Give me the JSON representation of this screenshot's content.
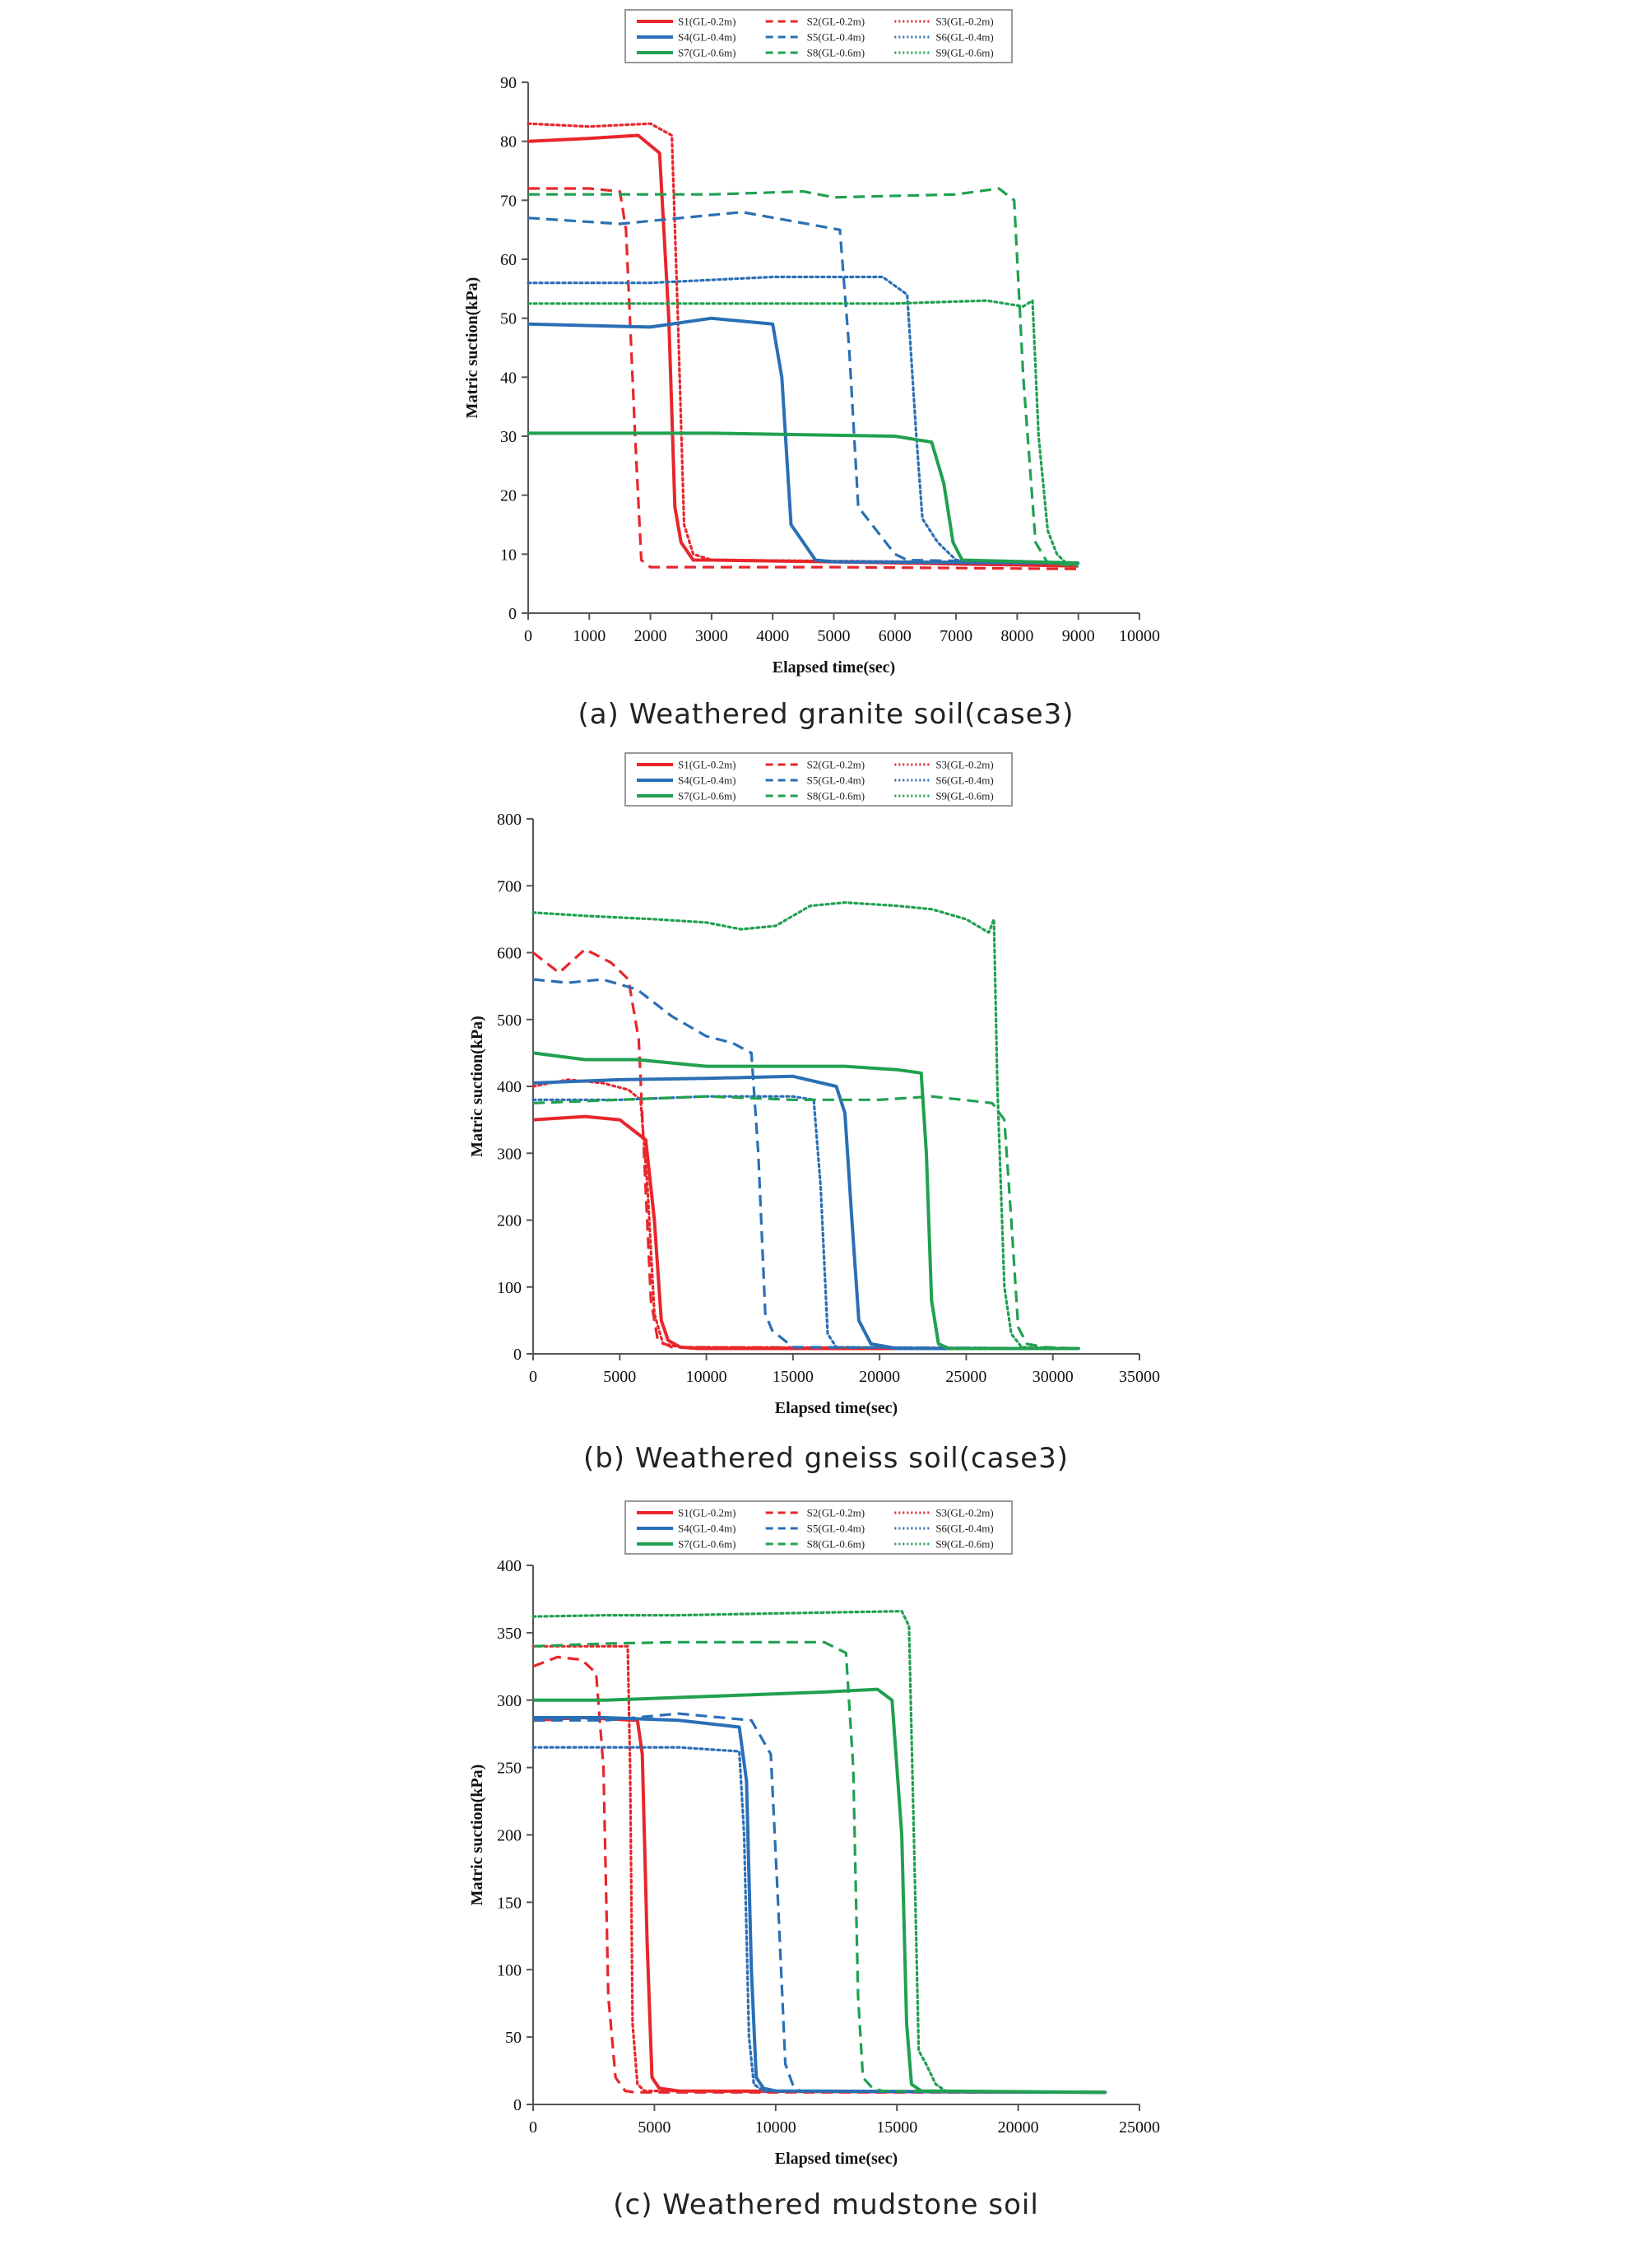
{
  "figure": {
    "legend_entries": [
      {
        "label": "S1(GL-0.2m)",
        "color": "#e8262b",
        "style": "solid"
      },
      {
        "label": "S2(GL-0.2m)",
        "color": "#e8262b",
        "style": "dashed"
      },
      {
        "label": "S3(GL-0.2m)",
        "color": "#e8262b",
        "style": "dotted"
      },
      {
        "label": "S4(GL-0.4m)",
        "color": "#2a6fb5",
        "style": "solid"
      },
      {
        "label": "S5(GL-0.4m)",
        "color": "#2a6fb5",
        "style": "dashed"
      },
      {
        "label": "S6(GL-0.4m)",
        "color": "#2a6fb5",
        "style": "dotted"
      },
      {
        "label": "S7(GL-0.6m)",
        "color": "#20a050",
        "style": "solid"
      },
      {
        "label": "S8(GL-0.6m)",
        "color": "#20a050",
        "style": "dashed"
      },
      {
        "label": "S9(GL-0.6m)",
        "color": "#20a050",
        "style": "dotted"
      }
    ]
  },
  "chart_data": [
    {
      "type": "line",
      "id": "a",
      "caption": "(a)  Weathered  granite  soil(case3)",
      "xlabel": "Elapsed time(sec)",
      "ylabel": "Matric suction(kPa)",
      "xlim": [
        0,
        10000
      ],
      "ylim": [
        0,
        90
      ],
      "xticks": [
        0,
        1000,
        2000,
        3000,
        4000,
        5000,
        6000,
        7000,
        8000,
        9000,
        10000
      ],
      "yticks": [
        0,
        10,
        20,
        30,
        40,
        50,
        60,
        70,
        80,
        90
      ],
      "series": [
        {
          "name": "S1(GL-0.2m)",
          "color": "#e8262b",
          "style": "solid",
          "x": [
            0,
            1000,
            1800,
            2150,
            2300,
            2400,
            2500,
            2700,
            3000,
            5000,
            9000
          ],
          "y": [
            80,
            80.5,
            81,
            78,
            50,
            18,
            12,
            9,
            9,
            8.7,
            8
          ]
        },
        {
          "name": "S2(GL-0.2m)",
          "color": "#e8262b",
          "style": "dashed",
          "x": [
            0,
            1000,
            1500,
            1600,
            1750,
            1850,
            2000,
            5000,
            9000
          ],
          "y": [
            72,
            72,
            71.5,
            65,
            30,
            9,
            7.8,
            7.8,
            7.5
          ]
        },
        {
          "name": "S3(GL-0.2m)",
          "color": "#e8262b",
          "style": "dotted",
          "x": [
            0,
            1000,
            2000,
            2350,
            2450,
            2550,
            2700,
            3000,
            9000
          ],
          "y": [
            83,
            82.5,
            83,
            81,
            50,
            15,
            10,
            9,
            8.5
          ]
        },
        {
          "name": "S4(GL-0.4m)",
          "color": "#2a6fb5",
          "style": "solid",
          "x": [
            0,
            2000,
            3000,
            4000,
            4150,
            4300,
            4500,
            4700,
            5000,
            9000
          ],
          "y": [
            49,
            48.5,
            50,
            49,
            40,
            15,
            12,
            9,
            8.7,
            8.5
          ]
        },
        {
          "name": "S5(GL-0.4m)",
          "color": "#2a6fb5",
          "style": "dashed",
          "x": [
            0,
            1500,
            3500,
            5100,
            5250,
            5400,
            5700,
            6000,
            6200,
            9000
          ],
          "y": [
            67,
            66,
            68,
            65,
            45,
            18,
            14,
            10,
            9,
            8.5
          ]
        },
        {
          "name": "S6(GL-0.4m)",
          "color": "#2a6fb5",
          "style": "dotted",
          "x": [
            0,
            2000,
            4000,
            5800,
            6200,
            6350,
            6450,
            6700,
            7000,
            9000
          ],
          "y": [
            56,
            56,
            57,
            57,
            54,
            30,
            16,
            12,
            9,
            8.5
          ]
        },
        {
          "name": "S7(GL-0.6m)",
          "color": "#20a050",
          "style": "solid",
          "x": [
            0,
            3000,
            6000,
            6600,
            6800,
            6950,
            7100,
            9000
          ],
          "y": [
            30.5,
            30.5,
            30,
            29,
            22,
            12,
            9,
            8.5
          ]
        },
        {
          "name": "S8(GL-0.6m)",
          "color": "#20a050",
          "style": "dashed",
          "x": [
            0,
            3000,
            4500,
            5000,
            7000,
            7700,
            7950,
            8100,
            8300,
            8500,
            9000
          ],
          "y": [
            71,
            71,
            71.5,
            70.5,
            71,
            72,
            70,
            40,
            12,
            8.5,
            8
          ]
        },
        {
          "name": "S9(GL-0.6m)",
          "color": "#20a050",
          "style": "dotted",
          "x": [
            0,
            3000,
            6000,
            7500,
            8100,
            8250,
            8350,
            8500,
            8650,
            8800,
            9000
          ],
          "y": [
            52.5,
            52.5,
            52.5,
            53,
            52,
            53,
            30,
            14,
            10,
            8.5,
            8
          ]
        }
      ]
    },
    {
      "type": "line",
      "id": "b",
      "caption": "(b)  Weathered  gneiss  soil(case3)",
      "xlabel": "Elapsed time(sec)",
      "ylabel": "Matric suction(kPa)",
      "xlim": [
        0,
        35000
      ],
      "ylim": [
        0,
        800
      ],
      "xticks": [
        0,
        5000,
        10000,
        15000,
        20000,
        25000,
        30000,
        35000
      ],
      "yticks": [
        0,
        100,
        200,
        300,
        400,
        500,
        600,
        700,
        800
      ],
      "series": [
        {
          "name": "S1(GL-0.2m)",
          "color": "#e8262b",
          "style": "solid",
          "x": [
            0,
            3000,
            5000,
            6500,
            7000,
            7400,
            7800,
            8500,
            9500,
            31500
          ],
          "y": [
            350,
            355,
            350,
            320,
            200,
            50,
            20,
            10,
            8,
            8
          ]
        },
        {
          "name": "S2(GL-0.2m)",
          "color": "#e8262b",
          "style": "dashed",
          "x": [
            0,
            1500,
            3000,
            4500,
            5500,
            6100,
            6400,
            6800,
            7200,
            8000,
            31500
          ],
          "y": [
            600,
            570,
            605,
            585,
            560,
            470,
            300,
            80,
            20,
            10,
            8
          ]
        },
        {
          "name": "S3(GL-0.2m)",
          "color": "#e8262b",
          "style": "dotted",
          "x": [
            0,
            2000,
            4000,
            5500,
            6200,
            6600,
            7000,
            7500,
            8500,
            31500
          ],
          "y": [
            400,
            410,
            405,
            395,
            380,
            250,
            60,
            15,
            10,
            8
          ]
        },
        {
          "name": "S4(GL-0.4m)",
          "color": "#2a6fb5",
          "style": "solid",
          "x": [
            0,
            5000,
            10000,
            15000,
            17500,
            18000,
            18400,
            18800,
            19500,
            21000,
            31500
          ],
          "y": [
            405,
            410,
            412,
            415,
            400,
            360,
            200,
            50,
            15,
            8,
            8
          ]
        },
        {
          "name": "S5(GL-0.4m)",
          "color": "#2a6fb5",
          "style": "dashed",
          "x": [
            0,
            2000,
            4000,
            6000,
            8000,
            10000,
            11500,
            12600,
            13000,
            13400,
            13800,
            15000,
            31500
          ],
          "y": [
            560,
            555,
            560,
            545,
            505,
            475,
            465,
            450,
            300,
            60,
            35,
            10,
            8
          ]
        },
        {
          "name": "S6(GL-0.4m)",
          "color": "#2a6fb5",
          "style": "dotted",
          "x": [
            0,
            5000,
            10000,
            15000,
            16200,
            16600,
            17000,
            17500,
            31500
          ],
          "y": [
            380,
            380,
            385,
            385,
            380,
            250,
            30,
            10,
            8
          ]
        },
        {
          "name": "S7(GL-0.6m)",
          "color": "#20a050",
          "style": "solid",
          "x": [
            0,
            3000,
            6000,
            10000,
            15000,
            18000,
            21000,
            22400,
            22700,
            23000,
            23400,
            24000,
            31500
          ],
          "y": [
            450,
            440,
            440,
            430,
            430,
            430,
            425,
            420,
            300,
            80,
            15,
            8,
            8
          ]
        },
        {
          "name": "S8(GL-0.6m)",
          "color": "#20a050",
          "style": "dashed",
          "x": [
            0,
            5000,
            10000,
            15000,
            20000,
            23000,
            26500,
            27200,
            27600,
            28000,
            28500,
            29500,
            31500
          ],
          "y": [
            375,
            380,
            385,
            380,
            380,
            385,
            375,
            350,
            200,
            40,
            15,
            10,
            8
          ]
        },
        {
          "name": "S9(GL-0.6m)",
          "color": "#20a050",
          "style": "dotted",
          "x": [
            0,
            3000,
            7000,
            10000,
            12000,
            14000,
            16000,
            18000,
            21000,
            23000,
            25000,
            26300,
            26600,
            26800,
            27200,
            27600,
            28200,
            31500
          ],
          "y": [
            660,
            655,
            650,
            645,
            635,
            640,
            670,
            675,
            670,
            665,
            650,
            630,
            650,
            400,
            100,
            30,
            10,
            8
          ]
        }
      ]
    },
    {
      "type": "line",
      "id": "c",
      "caption": "(c)  Weathered  mudstone  soil",
      "xlabel": "Elapsed time(sec)",
      "ylabel": "Matric suction(kPa)",
      "xlim": [
        0,
        25000
      ],
      "ylim": [
        0,
        400
      ],
      "xticks": [
        0,
        5000,
        10000,
        15000,
        20000,
        25000
      ],
      "yticks": [
        0,
        50,
        100,
        150,
        200,
        250,
        300,
        350,
        400
      ],
      "series": [
        {
          "name": "S1(GL-0.2m)",
          "color": "#e8262b",
          "style": "solid",
          "x": [
            0,
            2000,
            4300,
            4500,
            4700,
            4900,
            5200,
            6000,
            23600
          ],
          "y": [
            285,
            287,
            285,
            260,
            120,
            20,
            12,
            10,
            9
          ]
        },
        {
          "name": "S2(GL-0.2m)",
          "color": "#e8262b",
          "style": "dashed",
          "x": [
            0,
            1000,
            2000,
            2600,
            2900,
            3100,
            3400,
            3800,
            4200,
            23600
          ],
          "y": [
            325,
            332,
            330,
            320,
            250,
            80,
            20,
            10,
            9,
            9
          ]
        },
        {
          "name": "S3(GL-0.2m)",
          "color": "#e8262b",
          "style": "dotted",
          "x": [
            0,
            2000,
            3900,
            4000,
            4100,
            4300,
            4600,
            23600
          ],
          "y": [
            340,
            340,
            340,
            250,
            60,
            15,
            10,
            9
          ]
        },
        {
          "name": "S4(GL-0.4m)",
          "color": "#2a6fb5",
          "style": "solid",
          "x": [
            0,
            3000,
            6000,
            8500,
            8800,
            9000,
            9200,
            9500,
            10000,
            23600
          ],
          "y": [
            287,
            287,
            285,
            280,
            240,
            100,
            20,
            12,
            10,
            9
          ]
        },
        {
          "name": "S5(GL-0.4m)",
          "color": "#2a6fb5",
          "style": "dashed",
          "x": [
            0,
            3000,
            6000,
            9000,
            9800,
            10100,
            10400,
            10700,
            11000,
            23600
          ],
          "y": [
            285,
            285,
            290,
            285,
            260,
            150,
            30,
            15,
            10,
            9
          ]
        },
        {
          "name": "S6(GL-0.4m)",
          "color": "#2a6fb5",
          "style": "dotted",
          "x": [
            0,
            3000,
            6000,
            8500,
            8700,
            8900,
            9100,
            9500,
            23600
          ],
          "y": [
            265,
            265,
            265,
            262,
            200,
            50,
            15,
            10,
            9
          ]
        },
        {
          "name": "S7(GL-0.6m)",
          "color": "#20a050",
          "style": "solid",
          "x": [
            0,
            3000,
            6000,
            9000,
            12000,
            14200,
            14800,
            15200,
            15400,
            15600,
            16000,
            23600
          ],
          "y": [
            300,
            300,
            302,
            304,
            306,
            308,
            300,
            200,
            60,
            15,
            10,
            9
          ]
        },
        {
          "name": "S8(GL-0.6m)",
          "color": "#20a050",
          "style": "dashed",
          "x": [
            0,
            3000,
            6000,
            9000,
            12000,
            12900,
            13200,
            13400,
            13600,
            14000,
            14400,
            23600
          ],
          "y": [
            340,
            342,
            343,
            343,
            343,
            335,
            250,
            80,
            20,
            12,
            10,
            9
          ]
        },
        {
          "name": "S9(GL-0.6m)",
          "color": "#20a050",
          "style": "dotted",
          "x": [
            0,
            3000,
            6000,
            9000,
            12000,
            15200,
            15500,
            15700,
            15900,
            16200,
            16600,
            17000,
            23600
          ],
          "y": [
            362,
            363,
            363,
            364,
            365,
            366,
            355,
            200,
            40,
            30,
            15,
            10,
            9
          ]
        }
      ]
    }
  ]
}
